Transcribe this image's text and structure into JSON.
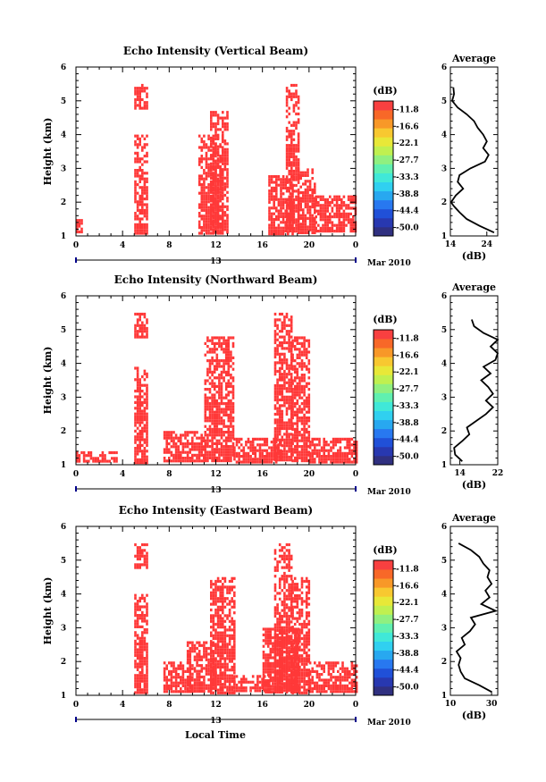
{
  "figure": {
    "xlabel": "Local Time",
    "date_label": "13",
    "month_label": "Mar 2010",
    "ylabel": "Height (km)",
    "avg_title": "Average",
    "avg_xlabel": "(dB)",
    "cb_unit": "(dB)",
    "cb_ticks": [
      "-11.8",
      "-16.6",
      "-22.1",
      "-27.7",
      "-33.3",
      "-38.8",
      "-44.4",
      "-50.0"
    ],
    "cb_colors": [
      "#303080",
      "#2838b0",
      "#2050d8",
      "#2878f0",
      "#28a8f0",
      "#30d0f0",
      "#40e8d8",
      "#60f0b0",
      "#90f080",
      "#c0f050",
      "#e8e838",
      "#f8c830",
      "#f89828",
      "#f86828",
      "#f84040"
    ],
    "echo_color": "#ff3838",
    "x_ticks": [
      "0",
      "4",
      "8",
      "12",
      "16",
      "20",
      "0"
    ],
    "y_ticks": [
      "1",
      "2",
      "3",
      "4",
      "5",
      "6"
    ]
  },
  "chart_data": [
    {
      "type": "heatmap",
      "title": "Echo Intensity (Vertical Beam)",
      "xlabel": "Local Time",
      "ylabel": "Height (km)",
      "xlim": [
        0,
        24
      ],
      "ylim": [
        1,
        6
      ],
      "colorbar_unit": "dB",
      "colorbar_range": [
        -50.0,
        -11.8
      ],
      "echo_regions": [
        {
          "time": [
            0,
            0.5
          ],
          "height": [
            1.1,
            1.5
          ]
        },
        {
          "time": [
            5.0,
            6.0
          ],
          "height": [
            4.8,
            5.5
          ]
        },
        {
          "time": [
            5.0,
            6.0
          ],
          "height": [
            1.1,
            4.0
          ]
        },
        {
          "time": [
            10.5,
            12.5
          ],
          "height": [
            1.1,
            4.0
          ]
        },
        {
          "time": [
            11.5,
            13.0
          ],
          "height": [
            1.1,
            4.7
          ]
        },
        {
          "time": [
            16.5,
            18.5
          ],
          "height": [
            1.1,
            2.8
          ]
        },
        {
          "time": [
            18.0,
            19.0
          ],
          "height": [
            1.1,
            5.5
          ]
        },
        {
          "time": [
            19.0,
            20.5
          ],
          "height": [
            1.1,
            3.0
          ]
        },
        {
          "time": [
            20.5,
            24.0
          ],
          "height": [
            1.1,
            2.2
          ]
        }
      ],
      "average_profile": {
        "xlabel": "(dB)",
        "xlim": [
          14,
          27
        ],
        "xticks": [
          14,
          24
        ],
        "height": [
          1.1,
          1.3,
          1.5,
          1.7,
          1.9,
          2.0,
          2.2,
          2.4,
          2.6,
          2.8,
          3.0,
          3.2,
          3.4,
          3.6,
          3.8,
          4.0,
          4.2,
          4.4,
          4.6,
          4.8,
          5.0,
          5.2,
          5.4
        ],
        "value": [
          26.0,
          22.0,
          18.5,
          16.5,
          14.8,
          14.2,
          15.5,
          17.5,
          16.0,
          16.5,
          19.5,
          23.5,
          24.5,
          23.0,
          24.0,
          23.0,
          21.5,
          20.5,
          18.5,
          16.0,
          14.5,
          15.0,
          14.8
        ]
      }
    },
    {
      "type": "heatmap",
      "title": "Echo Intensity (Northward Beam)",
      "xlabel": "Local Time",
      "ylabel": "Height (km)",
      "xlim": [
        0,
        24
      ],
      "ylim": [
        1,
        6
      ],
      "colorbar_unit": "dB",
      "colorbar_range": [
        -50.0,
        -11.8
      ],
      "echo_regions": [
        {
          "time": [
            0,
            3.5
          ],
          "height": [
            1.1,
            1.4
          ]
        },
        {
          "time": [
            5.0,
            6.0
          ],
          "height": [
            4.8,
            5.5
          ]
        },
        {
          "time": [
            5.0,
            6.0
          ],
          "height": [
            1.1,
            3.9
          ]
        },
        {
          "time": [
            7.5,
            11.0
          ],
          "height": [
            1.1,
            2.0
          ]
        },
        {
          "time": [
            11.0,
            13.5
          ],
          "height": [
            1.1,
            4.8
          ]
        },
        {
          "time": [
            13.5,
            17.5
          ],
          "height": [
            1.1,
            1.8
          ]
        },
        {
          "time": [
            17.0,
            18.5
          ],
          "height": [
            1.1,
            5.5
          ]
        },
        {
          "time": [
            18.5,
            20.0
          ],
          "height": [
            1.1,
            4.8
          ]
        },
        {
          "time": [
            20.0,
            24.0
          ],
          "height": [
            1.1,
            1.8
          ]
        }
      ],
      "average_profile": {
        "xlabel": "(dB)",
        "xlim": [
          12,
          22
        ],
        "xticks": [
          14,
          22
        ],
        "height": [
          1.1,
          1.3,
          1.5,
          1.7,
          1.9,
          2.1,
          2.3,
          2.5,
          2.7,
          2.9,
          3.1,
          3.3,
          3.5,
          3.7,
          3.9,
          4.1,
          4.3,
          4.5,
          4.7,
          4.9,
          5.1,
          5.3
        ],
        "value": [
          14.5,
          13.0,
          12.8,
          14.5,
          16.0,
          15.5,
          17.5,
          19.5,
          21.0,
          19.5,
          21.0,
          20.0,
          18.5,
          20.5,
          19.0,
          21.5,
          22.0,
          20.5,
          22.0,
          19.0,
          17.0,
          16.5
        ]
      }
    },
    {
      "type": "heatmap",
      "title": "Echo Intensity (Eastward Beam)",
      "xlabel": "Local Time",
      "ylabel": "Height (km)",
      "xlim": [
        0,
        24
      ],
      "ylim": [
        1,
        6
      ],
      "colorbar_unit": "dB",
      "colorbar_range": [
        -50.0,
        -11.8
      ],
      "echo_regions": [
        {
          "time": [
            5.0,
            6.0
          ],
          "height": [
            4.8,
            5.5
          ]
        },
        {
          "time": [
            5.0,
            6.0
          ],
          "height": [
            1.1,
            4.0
          ]
        },
        {
          "time": [
            7.5,
            10.0
          ],
          "height": [
            1.1,
            2.0
          ]
        },
        {
          "time": [
            9.5,
            12.0
          ],
          "height": [
            1.1,
            2.6
          ]
        },
        {
          "time": [
            11.5,
            13.5
          ],
          "height": [
            1.1,
            4.5
          ]
        },
        {
          "time": [
            13.5,
            16.5
          ],
          "height": [
            1.1,
            1.6
          ]
        },
        {
          "time": [
            16.0,
            19.0
          ],
          "height": [
            1.1,
            3.0
          ]
        },
        {
          "time": [
            17.0,
            18.5
          ],
          "height": [
            1.1,
            5.5
          ]
        },
        {
          "time": [
            18.5,
            20.0
          ],
          "height": [
            1.1,
            4.5
          ]
        },
        {
          "time": [
            20.0,
            24.0
          ],
          "height": [
            1.1,
            2.0
          ]
        }
      ],
      "average_profile": {
        "xlabel": "(dB)",
        "xlim": [
          10,
          33
        ],
        "xticks": [
          10,
          30
        ],
        "height": [
          1.1,
          1.3,
          1.5,
          1.7,
          1.9,
          2.1,
          2.3,
          2.5,
          2.7,
          2.9,
          3.1,
          3.3,
          3.5,
          3.7,
          3.9,
          4.1,
          4.3,
          4.5,
          4.7,
          4.9,
          5.1,
          5.3,
          5.5
        ],
        "value": [
          30.0,
          24.0,
          17.0,
          15.0,
          14.0,
          15.0,
          13.0,
          17.0,
          15.5,
          19.5,
          22.0,
          20.0,
          32.0,
          25.0,
          29.0,
          27.0,
          30.0,
          28.0,
          29.0,
          26.0,
          24.0,
          20.0,
          14.0
        ]
      }
    }
  ]
}
